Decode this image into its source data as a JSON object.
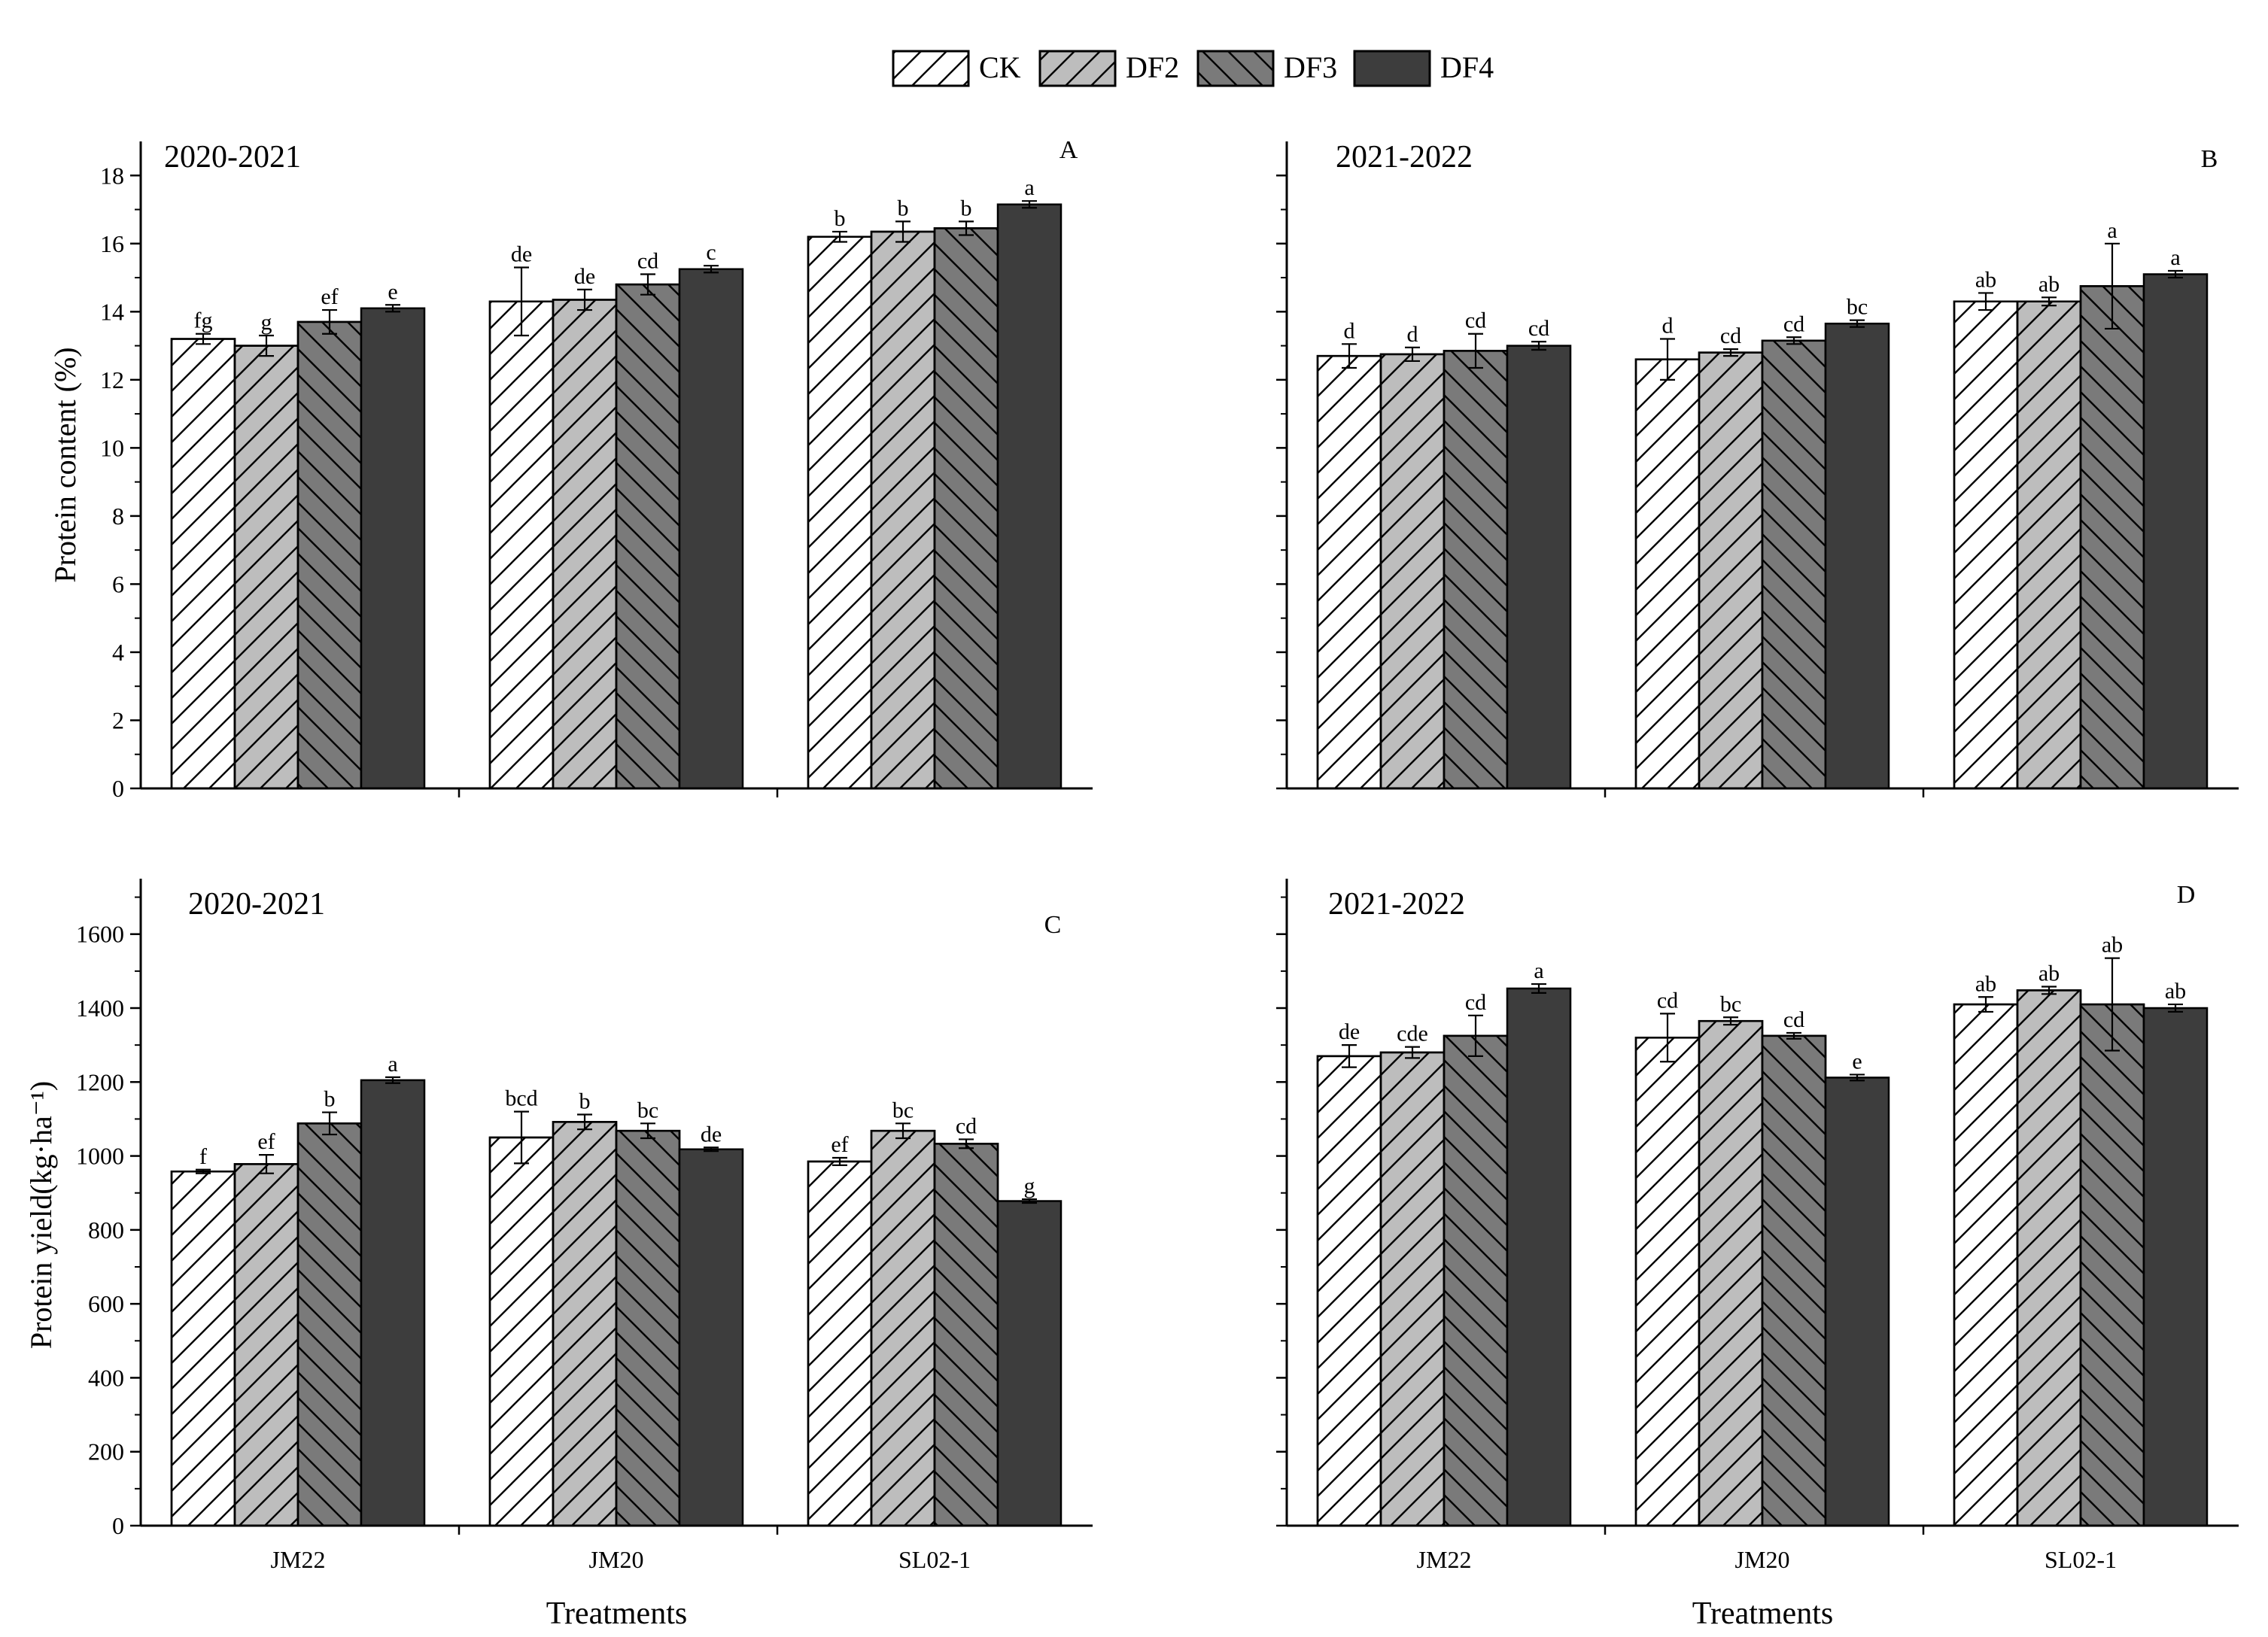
{
  "legend": {
    "items": [
      {
        "label": "CK",
        "fill": "#ffffff",
        "hatch": "fwd"
      },
      {
        "label": "DF2",
        "fill": "#bdbdbd",
        "hatch": "fwd"
      },
      {
        "label": "DF3",
        "fill": "#7a7a7a",
        "hatch": "back"
      },
      {
        "label": "DF4",
        "fill": "#3d3d3d",
        "hatch": "none"
      }
    ]
  },
  "chart_data": [
    {
      "type": "bar",
      "panel": "A",
      "subtitle": "2020-2021",
      "xlabel": "",
      "ylabel": "Protein content (%)",
      "ylim": [
        0,
        19
      ],
      "yticks": [
        0,
        2,
        4,
        6,
        8,
        10,
        12,
        14,
        16,
        18
      ],
      "categories": [
        "JM22",
        "JM20",
        "SL02-1"
      ],
      "show_xticklabels": false,
      "series": [
        {
          "name": "CK",
          "values": [
            13.2,
            14.3,
            16.2
          ],
          "errors": [
            0.15,
            1.0,
            0.15
          ],
          "letters": [
            "fg",
            "de",
            "b"
          ]
        },
        {
          "name": "DF2",
          "values": [
            13.0,
            14.35,
            16.35
          ],
          "errors": [
            0.3,
            0.3,
            0.3
          ],
          "letters": [
            "g",
            "de",
            "b"
          ]
        },
        {
          "name": "DF3",
          "values": [
            13.7,
            14.8,
            16.45
          ],
          "errors": [
            0.35,
            0.3,
            0.2
          ],
          "letters": [
            "ef",
            "cd",
            "b"
          ]
        },
        {
          "name": "DF4",
          "values": [
            14.1,
            15.25,
            17.15
          ],
          "errors": [
            0.1,
            0.1,
            0.1
          ],
          "letters": [
            "e",
            "c",
            "a"
          ]
        }
      ]
    },
    {
      "type": "bar",
      "panel": "B",
      "subtitle": "2021-2022",
      "xlabel": "",
      "ylabel": "",
      "ylim": [
        0,
        19
      ],
      "yticks": [
        0,
        2,
        4,
        6,
        8,
        10,
        12,
        14,
        16,
        18
      ],
      "categories": [
        "JM22",
        "JM20",
        "SL02-1"
      ],
      "show_xticklabels": false,
      "series": [
        {
          "name": "CK",
          "values": [
            12.7,
            12.6,
            14.3
          ],
          "errors": [
            0.35,
            0.6,
            0.25
          ],
          "letters": [
            "d",
            "d",
            "ab"
          ]
        },
        {
          "name": "DF2",
          "values": [
            12.75,
            12.8,
            14.3
          ],
          "errors": [
            0.2,
            0.1,
            0.12
          ],
          "letters": [
            "d",
            "cd",
            "ab"
          ]
        },
        {
          "name": "DF3",
          "values": [
            12.85,
            13.15,
            14.75
          ],
          "errors": [
            0.5,
            0.1,
            1.25
          ],
          "letters": [
            "cd",
            "cd",
            "a"
          ]
        },
        {
          "name": "DF4",
          "values": [
            13.0,
            13.65,
            15.1
          ],
          "errors": [
            0.12,
            0.1,
            0.1
          ],
          "letters": [
            "cd",
            "bc",
            "a"
          ]
        }
      ]
    },
    {
      "type": "bar",
      "panel": "C",
      "subtitle": "2020-2021",
      "xlabel": "Treatments",
      "ylabel": "Protein yield(kg·ha⁻¹)",
      "ylim": [
        0,
        1750
      ],
      "yticks": [
        0,
        200,
        400,
        600,
        800,
        1000,
        1200,
        1400,
        1600
      ],
      "categories": [
        "JM22",
        "JM20",
        "SL02-1"
      ],
      "show_xticklabels": true,
      "series": [
        {
          "name": "CK",
          "values": [
            958,
            1050,
            985
          ],
          "errors": [
            5,
            70,
            10
          ],
          "letters": [
            "f",
            "bcd",
            "ef"
          ]
        },
        {
          "name": "DF2",
          "values": [
            978,
            1092,
            1068
          ],
          "errors": [
            25,
            20,
            20
          ],
          "letters": [
            "ef",
            "b",
            "bc"
          ]
        },
        {
          "name": "DF3",
          "values": [
            1088,
            1068,
            1033
          ],
          "errors": [
            30,
            20,
            12
          ],
          "letters": [
            "b",
            "bc",
            "cd"
          ]
        },
        {
          "name": "DF4",
          "values": [
            1205,
            1018,
            878
          ],
          "errors": [
            8,
            5,
            5
          ],
          "letters": [
            "a",
            "de",
            "g"
          ]
        }
      ]
    },
    {
      "type": "bar",
      "panel": "D",
      "subtitle": "2021-2022",
      "xlabel": "Treatments",
      "ylabel": "",
      "ylim": [
        0,
        1750
      ],
      "yticks": [
        0,
        200,
        400,
        600,
        800,
        1000,
        1200,
        1400,
        1600
      ],
      "categories": [
        "JM22",
        "JM20",
        "SL02-1"
      ],
      "show_xticklabels": true,
      "series": [
        {
          "name": "CK",
          "values": [
            1270,
            1320,
            1410
          ],
          "errors": [
            30,
            65,
            20
          ],
          "letters": [
            "de",
            "cd",
            "ab"
          ]
        },
        {
          "name": "DF2",
          "values": [
            1280,
            1365,
            1448
          ],
          "errors": [
            15,
            10,
            10
          ],
          "letters": [
            "cde",
            "bc",
            "ab"
          ]
        },
        {
          "name": "DF3",
          "values": [
            1325,
            1325,
            1410
          ],
          "errors": [
            55,
            8,
            125
          ],
          "letters": [
            "cd",
            "cd",
            "ab"
          ]
        },
        {
          "name": "DF4",
          "values": [
            1453,
            1212,
            1400
          ],
          "errors": [
            12,
            8,
            10
          ],
          "letters": [
            "a",
            "e",
            "ab"
          ]
        }
      ]
    }
  ]
}
